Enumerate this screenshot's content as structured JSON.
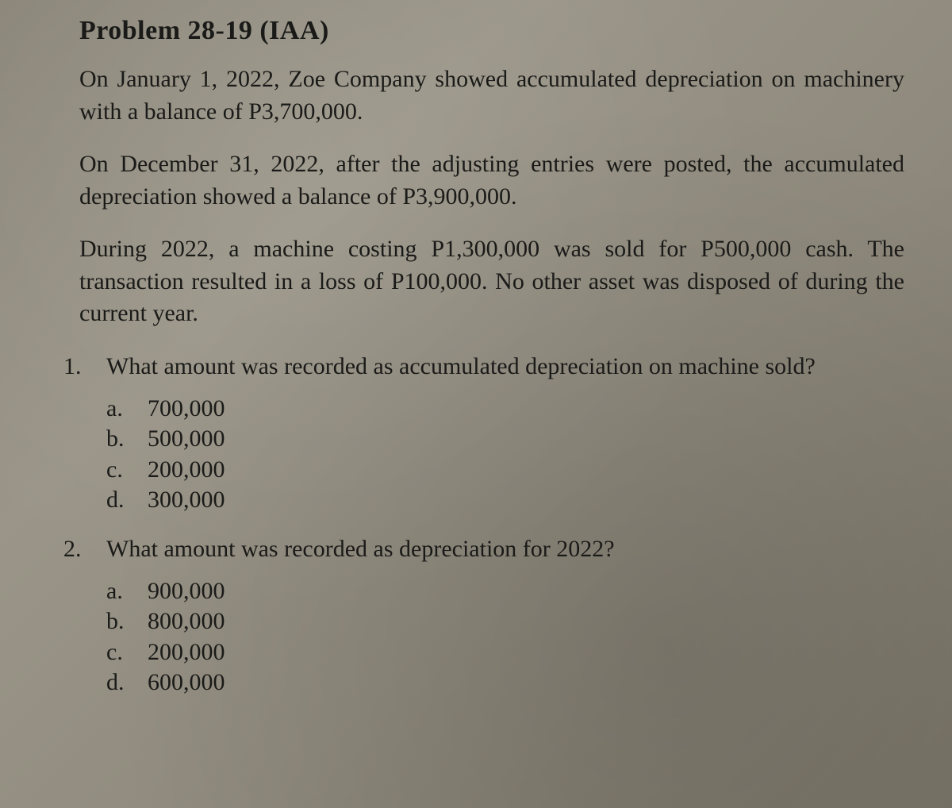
{
  "document": {
    "type": "textbook-problem",
    "background_color": "#8f8a7d",
    "text_color": "#1a1a18",
    "font_family": "Century Schoolbook",
    "title_fontsize": 34,
    "body_fontsize": 30,
    "title": "Problem 28-19  (IAA)",
    "paragraphs": [
      "On January 1, 2022, Zoe Company showed accumulated depreciation on machinery with a balance of P3,700,000.",
      "On December 31, 2022, after the adjusting entries were posted, the accumulated depreciation showed a balance of P3,900,000.",
      "During 2022, a machine costing P1,300,000 was sold for P500,000 cash. The transaction resulted in a loss of P100,000. No other asset was disposed of during the current year."
    ],
    "questions": [
      {
        "number": "1.",
        "text": "What amount was recorded as accumulated depreciation on machine sold?",
        "choices": [
          {
            "letter": "a.",
            "value": "700,000"
          },
          {
            "letter": "b.",
            "value": "500,000"
          },
          {
            "letter": "c.",
            "value": "200,000"
          },
          {
            "letter": "d.",
            "value": "300,000"
          }
        ]
      },
      {
        "number": "2.",
        "text": "What amount was recorded as depreciation for 2022?",
        "choices": [
          {
            "letter": "a.",
            "value": "900,000"
          },
          {
            "letter": "b.",
            "value": "800,000"
          },
          {
            "letter": "c.",
            "value": "200,000"
          },
          {
            "letter": "d.",
            "value": "600,000"
          }
        ]
      }
    ]
  }
}
